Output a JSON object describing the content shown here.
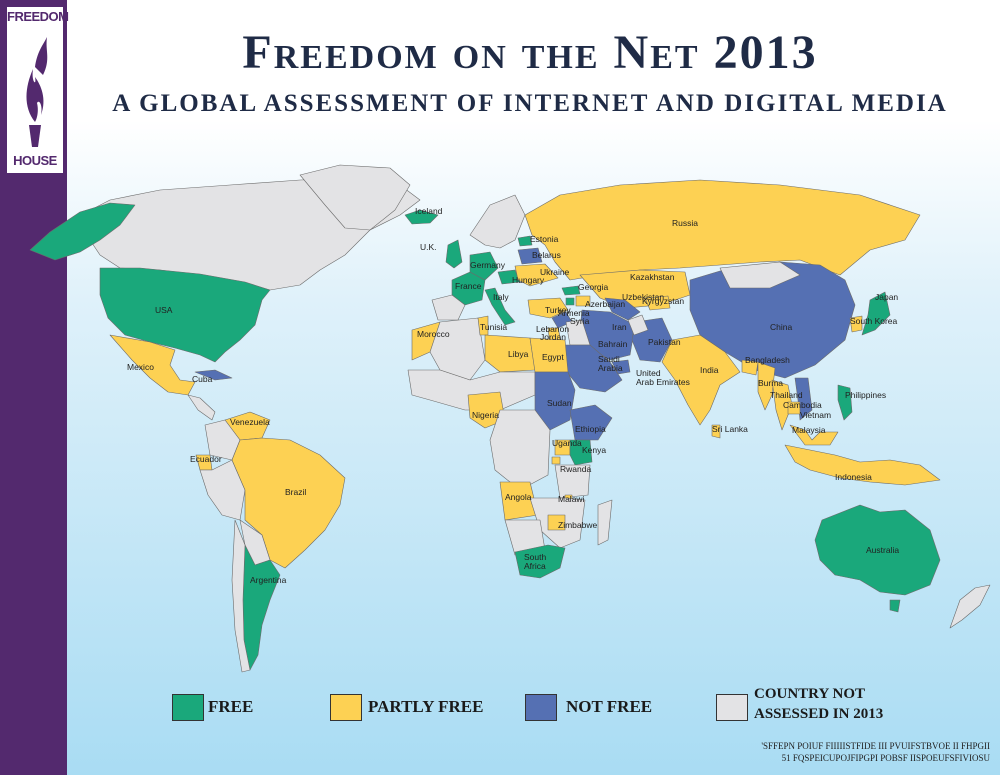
{
  "header": {
    "logo_line1": "FREEDOM",
    "logo_line2": "HOUSE",
    "title": "Freedom on the Net 2013",
    "subtitle": "A GLOBAL ASSESSMENT OF INTERNET AND DIGITAL MEDIA"
  },
  "colors": {
    "free": "#1aa87b",
    "partly_free": "#fdd153",
    "not_free": "#5570b3",
    "not_assessed": "#e3e3e5",
    "sidebar": "#53296e",
    "title": "#1f2b46"
  },
  "legend": {
    "free": "FREE",
    "partly_free": "PARTLY FREE",
    "not_free": "NOT FREE",
    "not_assessed_1": "COUNTRY NOT",
    "not_assessed_2": "ASSESSED IN 2013"
  },
  "note": {
    "line1": "'SFFEPN POIUF FIIIIISTFIDE III PVUIFSTBVOE II FHPGII",
    "line2": "51 FQSPEICUPOJFIPGPI POBSF IISPOEUFSFIVIOSU"
  },
  "countries": [
    {
      "name": "Iceland",
      "status": "free"
    },
    {
      "name": "U.K.",
      "status": "free"
    },
    {
      "name": "Estonia",
      "status": "free"
    },
    {
      "name": "Belarus",
      "status": "not_free"
    },
    {
      "name": "Germany",
      "status": "free"
    },
    {
      "name": "Ukraine",
      "status": "partly_free"
    },
    {
      "name": "Hungary",
      "status": "free"
    },
    {
      "name": "France",
      "status": "free"
    },
    {
      "name": "Italy",
      "status": "free"
    },
    {
      "name": "Georgia",
      "status": "free"
    },
    {
      "name": "Armenia",
      "status": "free"
    },
    {
      "name": "Azerbaijan",
      "status": "partly_free"
    },
    {
      "name": "Russia",
      "status": "partly_free"
    },
    {
      "name": "Kazakhstan",
      "status": "partly_free"
    },
    {
      "name": "Uzbekistan",
      "status": "not_free"
    },
    {
      "name": "Kyrgyzstan",
      "status": "partly_free"
    },
    {
      "name": "Turkey",
      "status": "partly_free"
    },
    {
      "name": "Syria",
      "status": "not_free"
    },
    {
      "name": "Lebanon",
      "status": "partly_free"
    },
    {
      "name": "Jordan",
      "status": "partly_free"
    },
    {
      "name": "Iran",
      "status": "not_free"
    },
    {
      "name": "Bahrain",
      "status": "not_free"
    },
    {
      "name": "Saudi Arabia",
      "status": "not_free"
    },
    {
      "name": "United Arab Emirates",
      "status": "not_free"
    },
    {
      "name": "Pakistan",
      "status": "not_free"
    },
    {
      "name": "China",
      "status": "not_free"
    },
    {
      "name": "South Korea",
      "status": "partly_free"
    },
    {
      "name": "Japan",
      "status": "free"
    },
    {
      "name": "India",
      "status": "partly_free"
    },
    {
      "name": "Bangladesh",
      "status": "partly_free"
    },
    {
      "name": "Burma",
      "status": "partly_free"
    },
    {
      "name": "Thailand",
      "status": "partly_free"
    },
    {
      "name": "Cambodia",
      "status": "partly_free"
    },
    {
      "name": "Vietnam",
      "status": "not_free"
    },
    {
      "name": "Philippines",
      "status": "free"
    },
    {
      "name": "Malaysia",
      "status": "partly_free"
    },
    {
      "name": "Indonesia",
      "status": "partly_free"
    },
    {
      "name": "Sri Lanka",
      "status": "partly_free"
    },
    {
      "name": "Australia",
      "status": "free"
    },
    {
      "name": "USA",
      "status": "free"
    },
    {
      "name": "Mexico",
      "status": "partly_free"
    },
    {
      "name": "Cuba",
      "status": "not_free"
    },
    {
      "name": "Venezuela",
      "status": "partly_free"
    },
    {
      "name": "Ecuador",
      "status": "partly_free"
    },
    {
      "name": "Brazil",
      "status": "partly_free"
    },
    {
      "name": "Argentina",
      "status": "free"
    },
    {
      "name": "Morocco",
      "status": "partly_free"
    },
    {
      "name": "Tunisia",
      "status": "partly_free"
    },
    {
      "name": "Libya",
      "status": "partly_free"
    },
    {
      "name": "Egypt",
      "status": "partly_free"
    },
    {
      "name": "Nigeria",
      "status": "partly_free"
    },
    {
      "name": "Sudan",
      "status": "not_free"
    },
    {
      "name": "Ethiopia",
      "status": "not_free"
    },
    {
      "name": "Uganda",
      "status": "partly_free"
    },
    {
      "name": "Kenya",
      "status": "free"
    },
    {
      "name": "Rwanda",
      "status": "partly_free"
    },
    {
      "name": "Angola",
      "status": "partly_free"
    },
    {
      "name": "Malawi",
      "status": "partly_free"
    },
    {
      "name": "Zimbabwe",
      "status": "partly_free"
    },
    {
      "name": "South Africa",
      "status": "free"
    }
  ]
}
